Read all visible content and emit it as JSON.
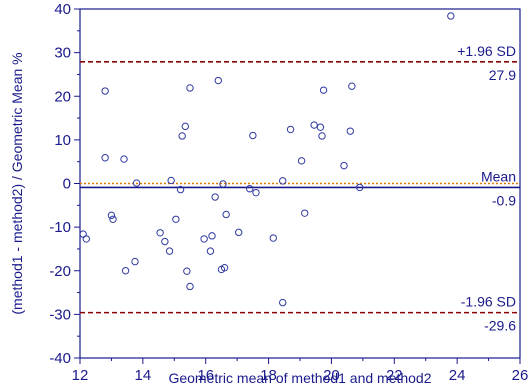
{
  "chart_data": {
    "type": "scatter",
    "title": "",
    "xlabel": "Geometric mean of method1 and method2",
    "ylabel": "(method1 - method2) / Geometric Mean %",
    "xlim": [
      12,
      26
    ],
    "ylim": [
      -40,
      40
    ],
    "x_ticks": [
      12,
      14,
      16,
      18,
      20,
      22,
      24,
      26
    ],
    "y_ticks": [
      -40,
      -30,
      -20,
      -10,
      0,
      10,
      20,
      30,
      40
    ],
    "grid": false,
    "reference_lines": [
      {
        "id": "upper",
        "value": 27.9,
        "label": "+1.96 SD",
        "value_label": "27.9",
        "color": "#8b0000",
        "style": "dashed"
      },
      {
        "id": "mean",
        "value": -0.9,
        "label": "Mean",
        "value_label": "-0.9",
        "color": "#1a1a8c",
        "style": "solid"
      },
      {
        "id": "lower",
        "value": -29.6,
        "label": "-1.96 SD",
        "value_label": "-29.6",
        "color": "#8b0000",
        "style": "dashed"
      },
      {
        "id": "zero",
        "value": 0,
        "color": "#e07b00",
        "style": "dotted"
      }
    ],
    "points": [
      {
        "x": 12.1,
        "y": -11.6
      },
      {
        "x": 12.2,
        "y": -12.7
      },
      {
        "x": 12.8,
        "y": 21.2
      },
      {
        "x": 12.8,
        "y": 5.9
      },
      {
        "x": 13.0,
        "y": -7.3
      },
      {
        "x": 13.05,
        "y": -8.2
      },
      {
        "x": 13.4,
        "y": 5.6
      },
      {
        "x": 13.45,
        "y": -20.0
      },
      {
        "x": 13.75,
        "y": -17.9
      },
      {
        "x": 13.8,
        "y": 0.1
      },
      {
        "x": 14.55,
        "y": -11.3
      },
      {
        "x": 14.7,
        "y": -13.3
      },
      {
        "x": 14.85,
        "y": -15.5
      },
      {
        "x": 14.9,
        "y": 0.7
      },
      {
        "x": 15.05,
        "y": -8.2
      },
      {
        "x": 15.2,
        "y": -1.4
      },
      {
        "x": 15.25,
        "y": 10.9
      },
      {
        "x": 15.35,
        "y": 13.1
      },
      {
        "x": 15.4,
        "y": -20.1
      },
      {
        "x": 15.5,
        "y": -23.6
      },
      {
        "x": 15.5,
        "y": 21.9
      },
      {
        "x": 15.95,
        "y": -12.7
      },
      {
        "x": 16.15,
        "y": -15.5
      },
      {
        "x": 16.2,
        "y": -12.0
      },
      {
        "x": 16.3,
        "y": -3.1
      },
      {
        "x": 16.4,
        "y": 23.6
      },
      {
        "x": 16.5,
        "y": -19.7
      },
      {
        "x": 16.55,
        "y": -0.1
      },
      {
        "x": 16.6,
        "y": -19.3
      },
      {
        "x": 16.65,
        "y": -7.1
      },
      {
        "x": 17.05,
        "y": -11.2
      },
      {
        "x": 17.4,
        "y": -1.2
      },
      {
        "x": 17.5,
        "y": 11.0
      },
      {
        "x": 17.6,
        "y": -2.1
      },
      {
        "x": 18.15,
        "y": -12.5
      },
      {
        "x": 18.45,
        "y": -27.3
      },
      {
        "x": 18.45,
        "y": 0.6
      },
      {
        "x": 18.7,
        "y": 12.4
      },
      {
        "x": 19.05,
        "y": 5.2
      },
      {
        "x": 19.15,
        "y": -6.8
      },
      {
        "x": 19.45,
        "y": 13.4
      },
      {
        "x": 19.65,
        "y": 12.9
      },
      {
        "x": 19.7,
        "y": 10.9
      },
      {
        "x": 19.75,
        "y": 21.4
      },
      {
        "x": 20.4,
        "y": 4.1
      },
      {
        "x": 20.6,
        "y": 12.0
      },
      {
        "x": 20.65,
        "y": 22.3
      },
      {
        "x": 20.9,
        "y": -0.9
      },
      {
        "x": 23.8,
        "y": 38.4
      }
    ],
    "colors": {
      "axis": "#1a1a8c",
      "text": "#1a1a8c",
      "point_stroke": "#2f3aa0",
      "sd_line": "#8b0000",
      "mean_line": "#1a1a8c",
      "zero_line": "#e07b00"
    }
  }
}
